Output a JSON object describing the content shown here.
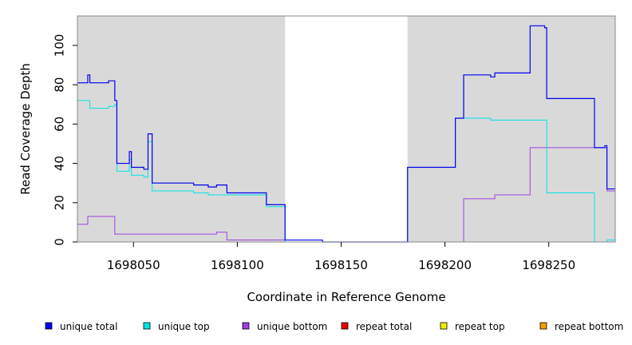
{
  "chart_data": {
    "type": "line",
    "title": "",
    "xlabel": "Coordinate in Reference Genome",
    "ylabel": "Read Coverage Depth",
    "xlim": [
      1698023,
      1698282
    ],
    "ylim": [
      0,
      115
    ],
    "x_ticks": [
      1698050,
      1698100,
      1698150,
      1698200,
      1698250
    ],
    "x_tick_labels": [
      "1698050",
      "1698100",
      "1698150",
      "1698200",
      "1698250"
    ],
    "y_ticks": [
      0,
      20,
      40,
      60,
      80,
      100
    ],
    "y_tick_labels": [
      "0",
      "20",
      "40",
      "60",
      "80",
      "100"
    ],
    "grid": false,
    "legend_position": "bottom",
    "shaded_regions": [
      {
        "x": [
          1698023,
          1698123
        ],
        "color": "#d9d9d9"
      },
      {
        "x": [
          1698182,
          1698282
        ],
        "color": "#d9d9d9"
      }
    ],
    "series": [
      {
        "name": "unique total",
        "color": "#0000ee",
        "points": [
          [
            1698023,
            81
          ],
          [
            1698028,
            81
          ],
          [
            1698028,
            85
          ],
          [
            1698029,
            85
          ],
          [
            1698029,
            81
          ],
          [
            1698038,
            81
          ],
          [
            1698038,
            82
          ],
          [
            1698041,
            82
          ],
          [
            1698041,
            72
          ],
          [
            1698042,
            72
          ],
          [
            1698042,
            40
          ],
          [
            1698048,
            40
          ],
          [
            1698048,
            46
          ],
          [
            1698049,
            46
          ],
          [
            1698049,
            38
          ],
          [
            1698055,
            38
          ],
          [
            1698055,
            37
          ],
          [
            1698057,
            37
          ],
          [
            1698057,
            55
          ],
          [
            1698059,
            55
          ],
          [
            1698059,
            30
          ],
          [
            1698079,
            30
          ],
          [
            1698079,
            29
          ],
          [
            1698086,
            29
          ],
          [
            1698086,
            28
          ],
          [
            1698090,
            28
          ],
          [
            1698090,
            29
          ],
          [
            1698095,
            29
          ],
          [
            1698095,
            25
          ],
          [
            1698114,
            25
          ],
          [
            1698114,
            19
          ],
          [
            1698123,
            19
          ],
          [
            1698123,
            1
          ],
          [
            1698141,
            1
          ],
          [
            1698141,
            0
          ],
          [
            1698182,
            0
          ],
          [
            1698182,
            38
          ],
          [
            1698205,
            38
          ],
          [
            1698205,
            63
          ],
          [
            1698209,
            63
          ],
          [
            1698209,
            85
          ],
          [
            1698222,
            85
          ],
          [
            1698222,
            84
          ],
          [
            1698224,
            84
          ],
          [
            1698224,
            86
          ],
          [
            1698241,
            86
          ],
          [
            1698241,
            110
          ],
          [
            1698248,
            110
          ],
          [
            1698248,
            109
          ],
          [
            1698249,
            109
          ],
          [
            1698249,
            73
          ],
          [
            1698272,
            73
          ],
          [
            1698272,
            48
          ],
          [
            1698277,
            48
          ],
          [
            1698277,
            49
          ],
          [
            1698278,
            49
          ],
          [
            1698278,
            27
          ],
          [
            1698282,
            27
          ]
        ]
      },
      {
        "name": "unique top",
        "color": "#00e5e5",
        "points": [
          [
            1698023,
            72
          ],
          [
            1698029,
            72
          ],
          [
            1698029,
            68
          ],
          [
            1698038,
            68
          ],
          [
            1698038,
            69
          ],
          [
            1698041,
            69
          ],
          [
            1698041,
            70
          ],
          [
            1698042,
            70
          ],
          [
            1698042,
            36
          ],
          [
            1698048,
            36
          ],
          [
            1698048,
            42
          ],
          [
            1698049,
            42
          ],
          [
            1698049,
            34
          ],
          [
            1698055,
            34
          ],
          [
            1698055,
            33
          ],
          [
            1698057,
            33
          ],
          [
            1698057,
            51
          ],
          [
            1698059,
            51
          ],
          [
            1698059,
            26
          ],
          [
            1698079,
            26
          ],
          [
            1698079,
            25
          ],
          [
            1698086,
            25
          ],
          [
            1698086,
            24
          ],
          [
            1698095,
            24
          ],
          [
            1698095,
            24
          ],
          [
            1698114,
            24
          ],
          [
            1698114,
            18
          ],
          [
            1698123,
            18
          ],
          [
            1698123,
            0
          ],
          [
            1698182,
            0
          ],
          [
            1698182,
            38
          ],
          [
            1698205,
            38
          ],
          [
            1698205,
            63
          ],
          [
            1698222,
            63
          ],
          [
            1698222,
            62
          ],
          [
            1698249,
            62
          ],
          [
            1698249,
            25
          ],
          [
            1698272,
            25
          ],
          [
            1698272,
            0
          ],
          [
            1698278,
            0
          ],
          [
            1698278,
            1
          ],
          [
            1698282,
            1
          ]
        ]
      },
      {
        "name": "unique bottom",
        "color": "#a040e0",
        "points": [
          [
            1698023,
            9
          ],
          [
            1698028,
            9
          ],
          [
            1698028,
            13
          ],
          [
            1698041,
            13
          ],
          [
            1698041,
            4
          ],
          [
            1698090,
            4
          ],
          [
            1698090,
            5
          ],
          [
            1698095,
            5
          ],
          [
            1698095,
            1
          ],
          [
            1698123,
            1
          ],
          [
            1698123,
            0
          ],
          [
            1698209,
            0
          ],
          [
            1698209,
            22
          ],
          [
            1698224,
            22
          ],
          [
            1698224,
            24
          ],
          [
            1698241,
            24
          ],
          [
            1698241,
            48
          ],
          [
            1698278,
            48
          ],
          [
            1698278,
            26
          ],
          [
            1698282,
            26
          ]
        ]
      },
      {
        "name": "repeat total",
        "color": "#ee0000",
        "points": [
          [
            1698023,
            0
          ],
          [
            1698282,
            0
          ]
        ]
      },
      {
        "name": "repeat top",
        "color": "#eeee00",
        "points": [
          [
            1698023,
            0
          ],
          [
            1698282,
            0
          ]
        ]
      },
      {
        "name": "repeat bottom",
        "color": "#f0a000",
        "points": [
          [
            1698023,
            0
          ],
          [
            1698282,
            0
          ]
        ]
      }
    ]
  }
}
